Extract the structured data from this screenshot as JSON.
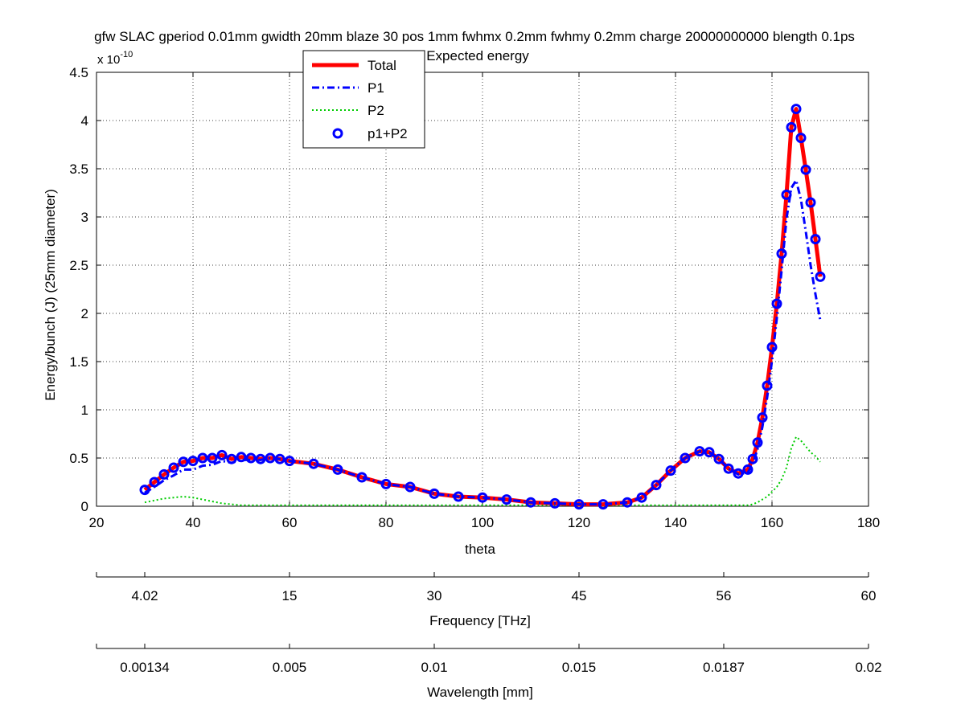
{
  "chart_data": {
    "type": "line",
    "title": "gfw SLAC gperiod 0.01mm gwidth 20mm blaze 30 pos 1mm fwhmx 0.2mm fwhmy 0.2mm charge 20000000000 blength 0.1ps",
    "subtitle": "Expected energy",
    "xlabel": "theta",
    "ylabel": "Energy/bunch (J)  (25mm diameter)",
    "y_multiplier_label": "x 10",
    "y_multiplier_exponent": "-10",
    "xlim": [
      20,
      180
    ],
    "ylim": [
      0,
      4.5
    ],
    "x_ticks": [
      20,
      40,
      60,
      80,
      100,
      120,
      140,
      160,
      180
    ],
    "x_tick_labels": [
      "20",
      "40",
      "60",
      "80",
      "100",
      "120",
      "140",
      "160",
      "180"
    ],
    "y_ticks": [
      0,
      0.5,
      1,
      1.5,
      2,
      2.5,
      3,
      3.5,
      4,
      4.5
    ],
    "y_tick_labels": [
      "0",
      "0.5",
      "1",
      "1.5",
      "2",
      "2.5",
      "3",
      "3.5",
      "4",
      "4.5"
    ],
    "grid": true,
    "legend_position": "top-center",
    "legend": [
      {
        "label": "Total",
        "color": "#ff0000",
        "style": "solid"
      },
      {
        "label": "P1",
        "color": "#0000ff",
        "style": "dashdot"
      },
      {
        "label": "P2",
        "color": "#00cc00",
        "style": "dotted"
      },
      {
        "label": "p1+P2",
        "color": "#0000ff",
        "style": "circle"
      }
    ],
    "secondary_axes": [
      {
        "label": "Frequency [THz]",
        "ticks": [
          {
            "theta": 30,
            "label": "4.02"
          },
          {
            "theta": 60,
            "label": "15"
          },
          {
            "theta": 90,
            "label": "30"
          },
          {
            "theta": 120,
            "label": "45"
          },
          {
            "theta": 150,
            "label": "56"
          },
          {
            "theta": 180,
            "label": "60"
          }
        ]
      },
      {
        "label": "Wavelength [mm]",
        "ticks": [
          {
            "theta": 30,
            "label": "0.00134"
          },
          {
            "theta": 60,
            "label": "0.005"
          },
          {
            "theta": 90,
            "label": "0.01"
          },
          {
            "theta": 120,
            "label": "0.015"
          },
          {
            "theta": 150,
            "label": "0.0187"
          },
          {
            "theta": 180,
            "label": "0.02"
          }
        ]
      }
    ],
    "series": [
      {
        "name": "Total",
        "color": "#ff0000",
        "x": [
          30,
          32,
          34,
          36,
          38,
          40,
          42,
          44,
          46,
          48,
          50,
          52,
          54,
          56,
          58,
          60,
          65,
          70,
          75,
          80,
          85,
          90,
          95,
          100,
          105,
          110,
          115,
          120,
          125,
          130,
          133,
          136,
          139,
          142,
          145,
          147,
          149,
          151,
          153,
          155,
          156,
          157,
          158,
          159,
          160,
          161,
          162,
          163,
          164,
          165,
          166,
          167,
          168,
          169,
          170
        ],
        "y": [
          0.17,
          0.25,
          0.33,
          0.4,
          0.46,
          0.47,
          0.5,
          0.5,
          0.53,
          0.49,
          0.51,
          0.5,
          0.49,
          0.5,
          0.49,
          0.47,
          0.44,
          0.38,
          0.3,
          0.23,
          0.2,
          0.13,
          0.1,
          0.09,
          0.07,
          0.04,
          0.03,
          0.02,
          0.02,
          0.04,
          0.09,
          0.22,
          0.37,
          0.5,
          0.57,
          0.56,
          0.49,
          0.39,
          0.34,
          0.38,
          0.49,
          0.66,
          0.92,
          1.25,
          1.65,
          2.1,
          2.62,
          3.23,
          3.93,
          4.12,
          3.82,
          3.49,
          3.15,
          2.77,
          2.38
        ]
      },
      {
        "name": "P1",
        "color": "#0000ff",
        "x": [
          30,
          32,
          34,
          36,
          38,
          40,
          42,
          44,
          46,
          48,
          50,
          52,
          54,
          56,
          58,
          60,
          65,
          70,
          75,
          80,
          85,
          90,
          95,
          100,
          105,
          110,
          115,
          120,
          125,
          130,
          133,
          136,
          139,
          142,
          145,
          147,
          149,
          151,
          153,
          155,
          156,
          157,
          158,
          159,
          160,
          161,
          162,
          163,
          164,
          165,
          166,
          167,
          168,
          169,
          170
        ],
        "y": [
          0.14,
          0.2,
          0.27,
          0.32,
          0.38,
          0.38,
          0.42,
          0.43,
          0.47,
          0.45,
          0.48,
          0.48,
          0.48,
          0.5,
          0.49,
          0.47,
          0.44,
          0.38,
          0.3,
          0.23,
          0.2,
          0.13,
          0.1,
          0.09,
          0.07,
          0.04,
          0.03,
          0.02,
          0.02,
          0.04,
          0.09,
          0.22,
          0.37,
          0.5,
          0.57,
          0.56,
          0.49,
          0.39,
          0.33,
          0.35,
          0.44,
          0.59,
          0.82,
          1.13,
          1.51,
          1.95,
          2.45,
          2.98,
          3.3,
          3.38,
          3.18,
          2.85,
          2.5,
          2.2,
          1.93
        ]
      },
      {
        "name": "P2",
        "color": "#00cc00",
        "x": [
          30,
          32,
          34,
          36,
          38,
          40,
          42,
          44,
          46,
          48,
          50,
          52,
          54,
          56,
          58,
          60,
          65,
          70,
          75,
          80,
          85,
          90,
          95,
          100,
          105,
          110,
          115,
          120,
          125,
          130,
          133,
          136,
          139,
          142,
          145,
          147,
          149,
          151,
          153,
          155,
          156,
          157,
          158,
          159,
          160,
          161,
          162,
          163,
          164,
          165,
          166,
          167,
          168,
          169,
          170
        ],
        "y": [
          0.04,
          0.06,
          0.08,
          0.09,
          0.1,
          0.09,
          0.07,
          0.05,
          0.03,
          0.02,
          0.01,
          0.01,
          0.01,
          0.01,
          0.01,
          0.01,
          0.01,
          0.01,
          0.01,
          0.01,
          0.01,
          0.01,
          0.01,
          0.01,
          0.01,
          0.01,
          0.01,
          0.01,
          0.01,
          0.01,
          0.01,
          0.01,
          0.01,
          0.01,
          0.01,
          0.01,
          0.01,
          0.01,
          0.01,
          0.01,
          0.02,
          0.04,
          0.07,
          0.1,
          0.15,
          0.2,
          0.28,
          0.4,
          0.6,
          0.72,
          0.68,
          0.62,
          0.56,
          0.52,
          0.46
        ]
      },
      {
        "name": "p1+P2",
        "color": "#0000ff",
        "x": [
          30,
          32,
          34,
          36,
          38,
          40,
          42,
          44,
          46,
          48,
          50,
          52,
          54,
          56,
          58,
          60,
          65,
          70,
          75,
          80,
          85,
          90,
          95,
          100,
          105,
          110,
          115,
          120,
          125,
          130,
          133,
          136,
          139,
          142,
          145,
          147,
          149,
          151,
          153,
          155,
          156,
          157,
          158,
          159,
          160,
          161,
          162,
          163,
          164,
          165,
          166,
          167,
          168,
          169,
          170
        ],
        "y": [
          0.17,
          0.25,
          0.33,
          0.4,
          0.46,
          0.47,
          0.5,
          0.5,
          0.53,
          0.49,
          0.51,
          0.5,
          0.49,
          0.5,
          0.49,
          0.47,
          0.44,
          0.38,
          0.3,
          0.23,
          0.2,
          0.13,
          0.1,
          0.09,
          0.07,
          0.04,
          0.03,
          0.02,
          0.02,
          0.04,
          0.09,
          0.22,
          0.37,
          0.5,
          0.57,
          0.56,
          0.49,
          0.39,
          0.34,
          0.38,
          0.49,
          0.66,
          0.92,
          1.25,
          1.65,
          2.1,
          2.62,
          3.23,
          3.93,
          4.12,
          3.82,
          3.49,
          3.15,
          2.77,
          2.38
        ]
      }
    ]
  }
}
